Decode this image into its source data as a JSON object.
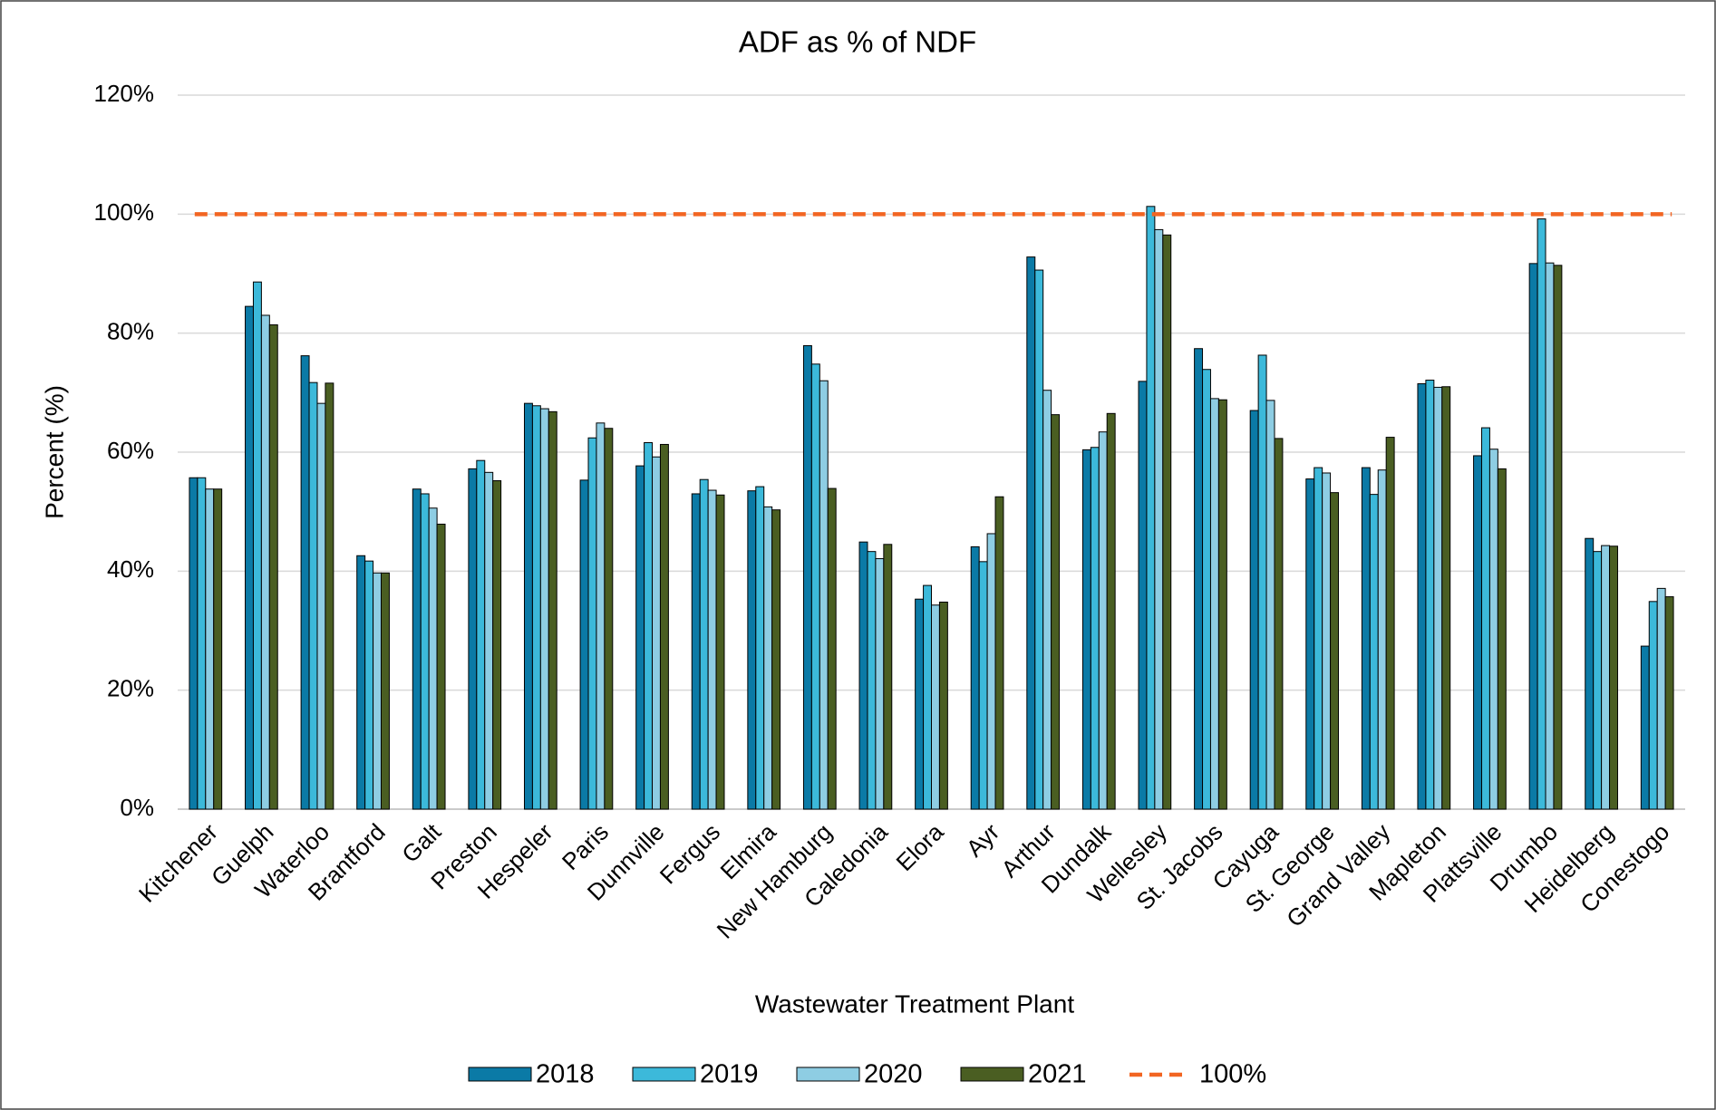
{
  "chart_data": {
    "type": "bar",
    "title": "ADF as % of NDF",
    "x_label": "Wastewater Treatment Plant",
    "y_label": "Percent (%)",
    "categories": [
      "Kitchener",
      "Guelph",
      "Waterloo",
      "Brantford",
      "Galt",
      "Preston",
      "Hespeler",
      "Paris",
      "Dunnville",
      "Fergus",
      "Elmira",
      "New Hamburg",
      "Caledonia",
      "Elora",
      "Ayr",
      "Arthur",
      "Dundalk",
      "Wellesley",
      "St. Jacobs",
      "Cayuga",
      "St. George",
      "Grand Valley",
      "Mapleton",
      "Plattsville",
      "Drumbo",
      "Heidelberg",
      "Conestogo"
    ],
    "series": [
      {
        "name": "2018",
        "color": "#0b7aa6",
        "values": [
          55.7,
          84.5,
          76.2,
          42.6,
          53.8,
          57.2,
          68.2,
          55.3,
          57.7,
          53.0,
          53.5,
          77.9,
          44.9,
          35.3,
          44.1,
          92.8,
          60.4,
          71.9,
          77.4,
          67.0,
          55.5,
          57.4,
          71.5,
          59.4,
          91.7,
          45.5,
          27.4
        ]
      },
      {
        "name": "2019",
        "color": "#3cb9da",
        "values": [
          55.7,
          88.6,
          71.7,
          41.7,
          53.0,
          58.6,
          67.8,
          62.4,
          61.6,
          55.4,
          54.2,
          74.8,
          43.3,
          37.6,
          41.6,
          90.6,
          60.8,
          101.3,
          73.9,
          76.3,
          57.4,
          52.9,
          72.1,
          64.1,
          99.2,
          43.3,
          34.9
        ]
      },
      {
        "name": "2020",
        "color": "#8ecde3",
        "values": [
          53.8,
          83.0,
          68.2,
          39.7,
          50.6,
          56.6,
          67.3,
          64.9,
          59.2,
          53.6,
          50.8,
          72.0,
          42.1,
          34.3,
          46.3,
          70.4,
          63.4,
          97.4,
          69.0,
          68.7,
          56.5,
          57.0,
          70.9,
          60.5,
          91.8,
          44.3,
          37.1
        ]
      },
      {
        "name": "2021",
        "color": "#4a5e22",
        "values": [
          53.8,
          81.4,
          71.6,
          39.7,
          47.9,
          55.2,
          66.8,
          64.0,
          61.3,
          52.8,
          50.3,
          53.9,
          44.5,
          34.8,
          52.5,
          66.3,
          66.5,
          96.5,
          68.8,
          62.3,
          53.2,
          62.5,
          71.0,
          57.2,
          91.4,
          44.2,
          35.7
        ]
      }
    ],
    "reference_line": {
      "name": "100%",
      "value": 100,
      "color": "#f26522",
      "dashed": true
    },
    "ylim": [
      0,
      120
    ],
    "yticks": [
      {
        "value": 0,
        "label": "0%"
      },
      {
        "value": 20,
        "label": "20%"
      },
      {
        "value": 40,
        "label": "40%"
      },
      {
        "value": 60,
        "label": "60%"
      },
      {
        "value": 80,
        "label": "80%"
      },
      {
        "value": 100,
        "label": "100%"
      },
      {
        "value": 120,
        "label": "120%"
      }
    ],
    "grid": true,
    "legend": "bottom"
  }
}
